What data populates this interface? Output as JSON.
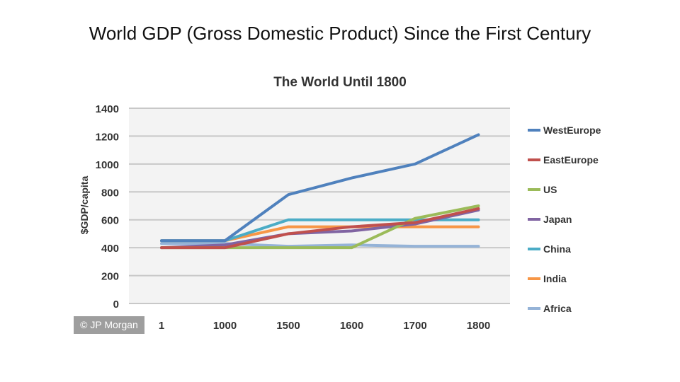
{
  "slide": {
    "title": "World GDP (Gross Domestic Product) Since the First Century"
  },
  "watermark": "© JP Morgan",
  "chart_data": {
    "type": "line",
    "title": "The World Until 1800",
    "ylabel": "$GDP/capita",
    "xlabel": "",
    "categories": [
      "1",
      "1000",
      "1500",
      "1600",
      "1700",
      "1800"
    ],
    "ylim": [
      0,
      1400
    ],
    "yticks": [
      0,
      200,
      400,
      600,
      800,
      1000,
      1200,
      1400
    ],
    "grid": true,
    "legend_position": "right",
    "series": [
      {
        "name": "WestEurope",
        "color": "#4f81bd",
        "values": [
          450,
          450,
          780,
          900,
          1000,
          1210
        ]
      },
      {
        "name": "EastEurope",
        "color": "#c0504d",
        "values": [
          400,
          400,
          500,
          550,
          580,
          680
        ]
      },
      {
        "name": "US",
        "color": "#9bbb59",
        "values": [
          400,
          400,
          400,
          400,
          610,
          700
        ]
      },
      {
        "name": "Japan",
        "color": "#8064a2",
        "values": [
          400,
          420,
          500,
          520,
          570,
          670
        ]
      },
      {
        "name": "China",
        "color": "#4bacc6",
        "values": [
          450,
          450,
          600,
          600,
          600,
          600
        ]
      },
      {
        "name": "India",
        "color": "#f79646",
        "values": [
          450,
          450,
          550,
          550,
          550,
          550
        ]
      },
      {
        "name": "Africa",
        "color": "#95b3d7",
        "values": [
          430,
          430,
          410,
          420,
          410,
          410
        ]
      }
    ]
  }
}
